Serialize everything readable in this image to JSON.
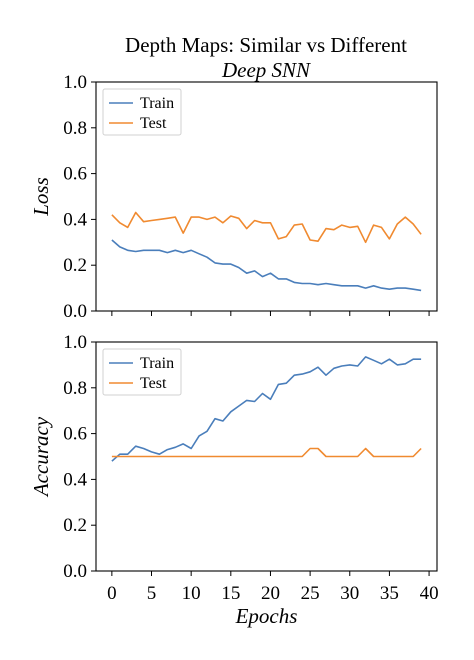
{
  "title": "Depth Maps: Similar vs Different",
  "subtitle": "Deep SNN",
  "colors": {
    "train": "#4a7ebb",
    "test": "#f08a30"
  },
  "chart_data": [
    {
      "type": "line",
      "ylabel": "Loss",
      "xlabel": "",
      "xlim": [
        -2,
        41
      ],
      "ylim": [
        0,
        1
      ],
      "xticks": [
        0,
        5,
        10,
        15,
        20,
        25,
        30,
        35,
        40
      ],
      "yticks": [
        0.0,
        0.2,
        0.4,
        0.6,
        0.8,
        1.0
      ],
      "show_xtick_labels": false,
      "legend": "top-left",
      "x": [
        0,
        1,
        2,
        3,
        4,
        5,
        6,
        7,
        8,
        9,
        10,
        11,
        12,
        13,
        14,
        15,
        16,
        17,
        18,
        19,
        20,
        21,
        22,
        23,
        24,
        25,
        26,
        27,
        28,
        29,
        30,
        31,
        32,
        33,
        34,
        35,
        36,
        37,
        38,
        39
      ],
      "series": [
        {
          "name": "Train",
          "color": "#4a7ebb",
          "values": [
            0.31,
            0.28,
            0.265,
            0.26,
            0.265,
            0.265,
            0.265,
            0.255,
            0.265,
            0.255,
            0.265,
            0.25,
            0.235,
            0.21,
            0.205,
            0.205,
            0.19,
            0.165,
            0.175,
            0.15,
            0.165,
            0.14,
            0.14,
            0.125,
            0.12,
            0.12,
            0.115,
            0.12,
            0.115,
            0.11,
            0.11,
            0.11,
            0.1,
            0.11,
            0.1,
            0.095,
            0.1,
            0.1,
            0.095,
            0.09
          ]
        },
        {
          "name": "Test",
          "color": "#f08a30",
          "values": [
            0.42,
            0.385,
            0.365,
            0.43,
            0.39,
            0.395,
            0.4,
            0.405,
            0.41,
            0.34,
            0.41,
            0.41,
            0.4,
            0.41,
            0.385,
            0.415,
            0.405,
            0.36,
            0.395,
            0.385,
            0.385,
            0.315,
            0.325,
            0.375,
            0.38,
            0.31,
            0.305,
            0.36,
            0.355,
            0.375,
            0.365,
            0.37,
            0.3,
            0.375,
            0.365,
            0.315,
            0.38,
            0.41,
            0.38,
            0.335
          ]
        }
      ]
    },
    {
      "type": "line",
      "ylabel": "Accuracy",
      "xlabel": "Epochs",
      "xlim": [
        -2,
        41
      ],
      "ylim": [
        0,
        1
      ],
      "xticks": [
        0,
        5,
        10,
        15,
        20,
        25,
        30,
        35,
        40
      ],
      "yticks": [
        0.0,
        0.2,
        0.4,
        0.6,
        0.8,
        1.0
      ],
      "show_xtick_labels": true,
      "legend": "top-left",
      "x": [
        0,
        1,
        2,
        3,
        4,
        5,
        6,
        7,
        8,
        9,
        10,
        11,
        12,
        13,
        14,
        15,
        16,
        17,
        18,
        19,
        20,
        21,
        22,
        23,
        24,
        25,
        26,
        27,
        28,
        29,
        30,
        31,
        32,
        33,
        34,
        35,
        36,
        37,
        38,
        39
      ],
      "series": [
        {
          "name": "Train",
          "color": "#4a7ebb",
          "values": [
            0.48,
            0.51,
            0.51,
            0.545,
            0.535,
            0.52,
            0.51,
            0.53,
            0.54,
            0.555,
            0.535,
            0.59,
            0.61,
            0.665,
            0.655,
            0.695,
            0.72,
            0.745,
            0.74,
            0.775,
            0.75,
            0.815,
            0.82,
            0.855,
            0.86,
            0.87,
            0.89,
            0.855,
            0.885,
            0.895,
            0.9,
            0.895,
            0.935,
            0.92,
            0.905,
            0.925,
            0.9,
            0.905,
            0.925,
            0.925
          ]
        },
        {
          "name": "Test",
          "color": "#f08a30",
          "values": [
            0.5,
            0.5,
            0.5,
            0.5,
            0.5,
            0.5,
            0.5,
            0.5,
            0.5,
            0.5,
            0.5,
            0.5,
            0.5,
            0.5,
            0.5,
            0.5,
            0.5,
            0.5,
            0.5,
            0.5,
            0.5,
            0.5,
            0.5,
            0.5,
            0.5,
            0.535,
            0.535,
            0.5,
            0.5,
            0.5,
            0.5,
            0.5,
            0.535,
            0.5,
            0.5,
            0.5,
            0.5,
            0.5,
            0.5,
            0.535
          ]
        }
      ]
    }
  ]
}
